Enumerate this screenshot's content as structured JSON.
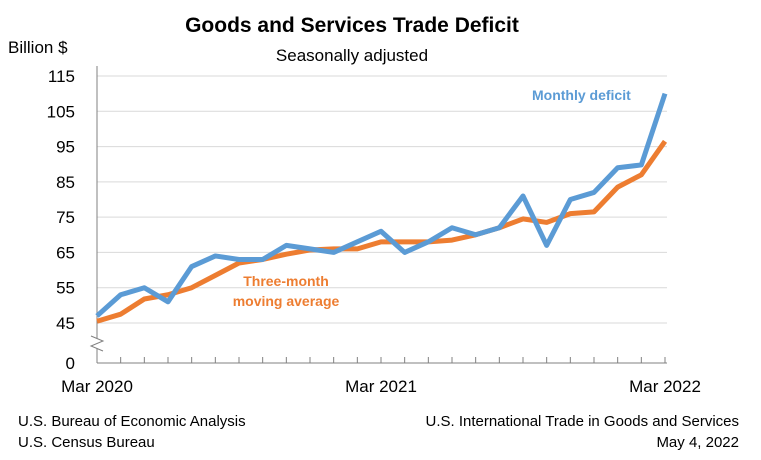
{
  "chart_data": {
    "type": "line",
    "title": "Goods and Services Trade Deficit",
    "subtitle": "Seasonally adjusted",
    "ylabel": "Billion $",
    "ylim": [
      0,
      115
    ],
    "broken_axis_between": [
      0,
      45
    ],
    "yticks": [
      0,
      45,
      55,
      65,
      75,
      85,
      95,
      105,
      115
    ],
    "xtick_labels": [
      "Mar 2020",
      "Mar 2021",
      "Mar 2022"
    ],
    "x": [
      "Mar 2020",
      "Apr 2020",
      "May 2020",
      "Jun 2020",
      "Jul 2020",
      "Aug 2020",
      "Sep 2020",
      "Oct 2020",
      "Nov 2020",
      "Dec 2020",
      "Jan 2021",
      "Feb 2021",
      "Mar 2021",
      "Apr 2021",
      "May 2021",
      "Jun 2021",
      "Jul 2021",
      "Aug 2021",
      "Sep 2021",
      "Oct 2021",
      "Nov 2021",
      "Dec 2021",
      "Jan 2022",
      "Feb 2022",
      "Mar 2022"
    ],
    "grid": true,
    "series": [
      {
        "name": "Monthly deficit",
        "color": "#5b9bd5",
        "values": [
          47,
          53,
          55,
          51,
          61,
          64,
          63,
          63,
          67,
          66,
          65,
          68,
          71,
          65,
          68,
          72,
          70,
          72,
          81,
          67,
          80,
          82,
          89,
          89.8,
          110
        ]
      },
      {
        "name": "Three-month moving average",
        "color": "#ed7d31",
        "values": [
          45.5,
          47.5,
          51.8,
          53,
          55,
          58.5,
          62,
          63,
          64.5,
          65.7,
          66,
          66,
          68,
          68,
          68,
          68.5,
          70,
          72,
          74.5,
          73.5,
          76,
          76.5,
          83.5,
          87,
          96.5
        ]
      }
    ],
    "annotations": {
      "monthly": "Monthly deficit",
      "avg_line1": "Three-month",
      "avg_line2": "moving average"
    }
  },
  "footer": {
    "left1": "U.S. Bureau of Economic Analysis",
    "left2": "U.S. Census Bureau",
    "right1": "U.S. International Trade in Goods and Services",
    "right2": "May 4, 2022"
  }
}
